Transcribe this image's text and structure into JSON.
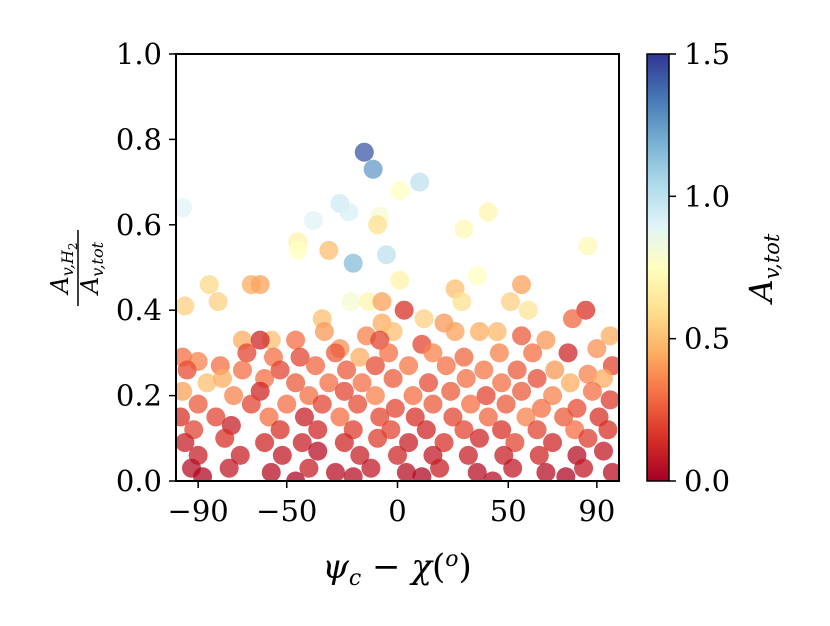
{
  "chart_data": {
    "type": "scatter",
    "title": "",
    "xlabel_parts": {
      "psi": "ψ",
      "psi_sub": "c",
      "minus": " − ",
      "chi": "χ",
      "open": "(",
      "sup": "o",
      "close": ")"
    },
    "ylabel_parts": {
      "num_main": "A",
      "num_sub": "v,H",
      "num_subsub": "2",
      "den_main": "A",
      "den_sub": "v,tot"
    },
    "colorbar_label_parts": {
      "main": "A",
      "sub": "v,tot"
    },
    "xlim": [
      -100,
      100
    ],
    "ylim": [
      0,
      1
    ],
    "xticks": [
      -90,
      -50,
      0,
      50,
      90
    ],
    "xtick_labels": [
      "−90",
      "−50",
      "0",
      "50",
      "90"
    ],
    "yticks": [
      0,
      0.2,
      0.4,
      0.6,
      0.8,
      1.0
    ],
    "ytick_labels": [
      "0.0",
      "0.2",
      "0.4",
      "0.6",
      "0.8",
      "1.0"
    ],
    "colorbar": {
      "min": 0,
      "max": 1.5,
      "ticks": [
        0,
        0.5,
        1.0,
        1.5
      ],
      "tick_labels": [
        "0.0",
        "0.5",
        "1.0",
        "1.5"
      ],
      "colormap": "RdYlBu"
    },
    "grid": false,
    "points": [
      {
        "x": -15,
        "y": 0.77,
        "c": 1.42
      },
      {
        "x": -11,
        "y": 0.73,
        "c": 1.25
      },
      {
        "x": 10,
        "y": 0.7,
        "c": 1.0
      },
      {
        "x": 1,
        "y": 0.68,
        "c": 0.75
      },
      {
        "x": -97,
        "y": 0.64,
        "c": 0.9
      },
      {
        "x": -26,
        "y": 0.65,
        "c": 0.95
      },
      {
        "x": -22,
        "y": 0.63,
        "c": 0.92
      },
      {
        "x": -8,
        "y": 0.62,
        "c": 0.8
      },
      {
        "x": -38,
        "y": 0.61,
        "c": 0.9
      },
      {
        "x": -9,
        "y": 0.6,
        "c": 0.6
      },
      {
        "x": 41,
        "y": 0.63,
        "c": 0.7
      },
      {
        "x": 30,
        "y": 0.59,
        "c": 0.72
      },
      {
        "x": -5,
        "y": 0.53,
        "c": 1.0
      },
      {
        "x": -20,
        "y": 0.51,
        "c": 1.15
      },
      {
        "x": -45,
        "y": 0.56,
        "c": 0.68
      },
      {
        "x": -45,
        "y": 0.54,
        "c": 0.75
      },
      {
        "x": -31,
        "y": 0.54,
        "c": 0.5
      },
      {
        "x": 86,
        "y": 0.55,
        "c": 0.72
      },
      {
        "x": 36,
        "y": 0.48,
        "c": 0.75
      },
      {
        "x": 1,
        "y": 0.47,
        "c": 0.68
      },
      {
        "x": -85,
        "y": 0.46,
        "c": 0.58
      },
      {
        "x": -66,
        "y": 0.46,
        "c": 0.45
      },
      {
        "x": -62,
        "y": 0.46,
        "c": 0.42
      },
      {
        "x": 26,
        "y": 0.45,
        "c": 0.5
      },
      {
        "x": 56,
        "y": 0.46,
        "c": 0.42
      },
      {
        "x": -96,
        "y": 0.41,
        "c": 0.55
      },
      {
        "x": -81,
        "y": 0.42,
        "c": 0.55
      },
      {
        "x": -21,
        "y": 0.42,
        "c": 0.8
      },
      {
        "x": -13,
        "y": 0.42,
        "c": 0.7
      },
      {
        "x": -7,
        "y": 0.42,
        "c": 0.42
      },
      {
        "x": 3,
        "y": 0.4,
        "c": 0.15
      },
      {
        "x": 29,
        "y": 0.42,
        "c": 0.6
      },
      {
        "x": 51,
        "y": 0.42,
        "c": 0.55
      },
      {
        "x": 59,
        "y": 0.4,
        "c": 0.62
      },
      {
        "x": 85,
        "y": 0.4,
        "c": 0.15
      },
      {
        "x": 79,
        "y": 0.38,
        "c": 0.28
      },
      {
        "x": -34,
        "y": 0.38,
        "c": 0.5
      },
      {
        "x": 12,
        "y": 0.38,
        "c": 0.55
      },
      {
        "x": -7,
        "y": 0.37,
        "c": 0.45
      },
      {
        "x": 21,
        "y": 0.37,
        "c": 0.4
      },
      {
        "x": 37,
        "y": 0.35,
        "c": 0.45
      },
      {
        "x": 45,
        "y": 0.35,
        "c": 0.48
      },
      {
        "x": -2,
        "y": 0.35,
        "c": 0.5
      },
      {
        "x": -33,
        "y": 0.35,
        "c": 0.4
      },
      {
        "x": -14,
        "y": 0.34,
        "c": 0.35
      },
      {
        "x": -70,
        "y": 0.33,
        "c": 0.45
      },
      {
        "x": -57,
        "y": 0.33,
        "c": 0.5
      },
      {
        "x": -46,
        "y": 0.33,
        "c": 0.3
      },
      {
        "x": 26,
        "y": 0.35,
        "c": 0.42
      },
      {
        "x": 67,
        "y": 0.33,
        "c": 0.4
      },
      {
        "x": 96,
        "y": 0.34,
        "c": 0.45
      },
      {
        "x": 56,
        "y": 0.34,
        "c": 0.25
      },
      {
        "x": -62,
        "y": 0.33,
        "c": 0.12
      },
      {
        "x": -68,
        "y": 0.3,
        "c": 0.2
      },
      {
        "x": 11,
        "y": 0.32,
        "c": 0.2
      },
      {
        "x": -8,
        "y": 0.33,
        "c": 0.2
      },
      {
        "x": -26,
        "y": 0.31,
        "c": 0.38
      },
      {
        "x": -97,
        "y": 0.29,
        "c": 0.3
      },
      {
        "x": -90,
        "y": 0.28,
        "c": 0.35
      },
      {
        "x": -80,
        "y": 0.27,
        "c": 0.3
      },
      {
        "x": -56,
        "y": 0.29,
        "c": 0.3
      },
      {
        "x": -44,
        "y": 0.29,
        "c": 0.2
      },
      {
        "x": -28,
        "y": 0.3,
        "c": 0.25
      },
      {
        "x": -17,
        "y": 0.29,
        "c": 0.45
      },
      {
        "x": -4,
        "y": 0.3,
        "c": 0.3
      },
      {
        "x": 16,
        "y": 0.3,
        "c": 0.35
      },
      {
        "x": 30,
        "y": 0.29,
        "c": 0.28
      },
      {
        "x": 46,
        "y": 0.3,
        "c": 0.35
      },
      {
        "x": 61,
        "y": 0.3,
        "c": 0.3
      },
      {
        "x": 77,
        "y": 0.3,
        "c": 0.12
      },
      {
        "x": 90,
        "y": 0.31,
        "c": 0.38
      },
      {
        "x": -95,
        "y": 0.26,
        "c": 0.22
      },
      {
        "x": -70,
        "y": 0.26,
        "c": 0.3
      },
      {
        "x": -53,
        "y": 0.26,
        "c": 0.2
      },
      {
        "x": -37,
        "y": 0.27,
        "c": 0.28
      },
      {
        "x": -23,
        "y": 0.26,
        "c": 0.25
      },
      {
        "x": -10,
        "y": 0.27,
        "c": 0.22
      },
      {
        "x": 5,
        "y": 0.27,
        "c": 0.32
      },
      {
        "x": 22,
        "y": 0.27,
        "c": 0.3
      },
      {
        "x": 39,
        "y": 0.26,
        "c": 0.32
      },
      {
        "x": 54,
        "y": 0.26,
        "c": 0.25
      },
      {
        "x": 71,
        "y": 0.26,
        "c": 0.4
      },
      {
        "x": 86,
        "y": 0.25,
        "c": 0.35
      },
      {
        "x": 97,
        "y": 0.27,
        "c": 0.2
      },
      {
        "x": -86,
        "y": 0.23,
        "c": 0.5
      },
      {
        "x": -79,
        "y": 0.24,
        "c": 0.45
      },
      {
        "x": -60,
        "y": 0.24,
        "c": 0.3
      },
      {
        "x": -46,
        "y": 0.23,
        "c": 0.25
      },
      {
        "x": -31,
        "y": 0.23,
        "c": 0.3
      },
      {
        "x": -16,
        "y": 0.23,
        "c": 0.3
      },
      {
        "x": -2,
        "y": 0.24,
        "c": 0.25
      },
      {
        "x": 14,
        "y": 0.23,
        "c": 0.22
      },
      {
        "x": 31,
        "y": 0.24,
        "c": 0.3
      },
      {
        "x": 47,
        "y": 0.23,
        "c": 0.3
      },
      {
        "x": 63,
        "y": 0.24,
        "c": 0.22
      },
      {
        "x": 78,
        "y": 0.23,
        "c": 0.45
      },
      {
        "x": 93,
        "y": 0.24,
        "c": 0.45
      },
      {
        "x": -97,
        "y": 0.21,
        "c": 0.42
      },
      {
        "x": -74,
        "y": 0.2,
        "c": 0.35
      },
      {
        "x": -62,
        "y": 0.21,
        "c": 0.12
      },
      {
        "x": -40,
        "y": 0.2,
        "c": 0.3
      },
      {
        "x": -24,
        "y": 0.21,
        "c": 0.2
      },
      {
        "x": -10,
        "y": 0.2,
        "c": 0.35
      },
      {
        "x": 7,
        "y": 0.2,
        "c": 0.3
      },
      {
        "x": 24,
        "y": 0.21,
        "c": 0.25
      },
      {
        "x": 40,
        "y": 0.2,
        "c": 0.2
      },
      {
        "x": 56,
        "y": 0.21,
        "c": 0.25
      },
      {
        "x": 70,
        "y": 0.2,
        "c": 0.35
      },
      {
        "x": 88,
        "y": 0.21,
        "c": 0.3
      },
      {
        "x": -90,
        "y": 0.18,
        "c": 0.25
      },
      {
        "x": -66,
        "y": 0.18,
        "c": 0.2
      },
      {
        "x": -50,
        "y": 0.18,
        "c": 0.3
      },
      {
        "x": -34,
        "y": 0.18,
        "c": 0.2
      },
      {
        "x": -18,
        "y": 0.18,
        "c": 0.22
      },
      {
        "x": -1,
        "y": 0.17,
        "c": 0.2
      },
      {
        "x": 16,
        "y": 0.18,
        "c": 0.25
      },
      {
        "x": 33,
        "y": 0.18,
        "c": 0.3
      },
      {
        "x": 49,
        "y": 0.18,
        "c": 0.25
      },
      {
        "x": 65,
        "y": 0.17,
        "c": 0.3
      },
      {
        "x": 81,
        "y": 0.17,
        "c": 0.22
      },
      {
        "x": 96,
        "y": 0.19,
        "c": 0.18
      },
      {
        "x": -98,
        "y": 0.15,
        "c": 0.15
      },
      {
        "x": -82,
        "y": 0.15,
        "c": 0.2
      },
      {
        "x": -58,
        "y": 0.15,
        "c": 0.3
      },
      {
        "x": -42,
        "y": 0.15,
        "c": 0.1
      },
      {
        "x": -26,
        "y": 0.15,
        "c": 0.3
      },
      {
        "x": -8,
        "y": 0.15,
        "c": 0.2
      },
      {
        "x": 8,
        "y": 0.15,
        "c": 0.15
      },
      {
        "x": 25,
        "y": 0.15,
        "c": 0.2
      },
      {
        "x": 41,
        "y": 0.15,
        "c": 0.28
      },
      {
        "x": 58,
        "y": 0.15,
        "c": 0.35
      },
      {
        "x": 75,
        "y": 0.15,
        "c": 0.25
      },
      {
        "x": 91,
        "y": 0.15,
        "c": 0.15
      },
      {
        "x": -92,
        "y": 0.12,
        "c": 0.2
      },
      {
        "x": -75,
        "y": 0.13,
        "c": 0.1
      },
      {
        "x": -53,
        "y": 0.12,
        "c": 0.15
      },
      {
        "x": -36,
        "y": 0.12,
        "c": 0.12
      },
      {
        "x": -20,
        "y": 0.12,
        "c": 0.18
      },
      {
        "x": -3,
        "y": 0.12,
        "c": 0.2
      },
      {
        "x": 13,
        "y": 0.12,
        "c": 0.12
      },
      {
        "x": 30,
        "y": 0.12,
        "c": 0.2
      },
      {
        "x": 47,
        "y": 0.12,
        "c": 0.15
      },
      {
        "x": 63,
        "y": 0.12,
        "c": 0.2
      },
      {
        "x": 80,
        "y": 0.12,
        "c": 0.3
      },
      {
        "x": 95,
        "y": 0.12,
        "c": 0.15
      },
      {
        "x": -96,
        "y": 0.09,
        "c": 0.1
      },
      {
        "x": -78,
        "y": 0.1,
        "c": 0.15
      },
      {
        "x": -60,
        "y": 0.09,
        "c": 0.12
      },
      {
        "x": -43,
        "y": 0.09,
        "c": 0.1
      },
      {
        "x": -24,
        "y": 0.09,
        "c": 0.12
      },
      {
        "x": -9,
        "y": 0.1,
        "c": 0.18
      },
      {
        "x": 5,
        "y": 0.09,
        "c": 0.1
      },
      {
        "x": 21,
        "y": 0.09,
        "c": 0.15
      },
      {
        "x": 37,
        "y": 0.1,
        "c": 0.12
      },
      {
        "x": 53,
        "y": 0.09,
        "c": 0.2
      },
      {
        "x": 70,
        "y": 0.09,
        "c": 0.12
      },
      {
        "x": 86,
        "y": 0.1,
        "c": 0.18
      },
      {
        "x": -90,
        "y": 0.06,
        "c": 0.1
      },
      {
        "x": -71,
        "y": 0.06,
        "c": 0.1
      },
      {
        "x": -52,
        "y": 0.06,
        "c": 0.08
      },
      {
        "x": -36,
        "y": 0.07,
        "c": 0.05
      },
      {
        "x": -17,
        "y": 0.06,
        "c": 0.1
      },
      {
        "x": 0,
        "y": 0.06,
        "c": 0.12
      },
      {
        "x": 16,
        "y": 0.06,
        "c": 0.08
      },
      {
        "x": 32,
        "y": 0.06,
        "c": 0.1
      },
      {
        "x": 48,
        "y": 0.06,
        "c": 0.1
      },
      {
        "x": 64,
        "y": 0.06,
        "c": 0.12
      },
      {
        "x": 81,
        "y": 0.06,
        "c": 0.05
      },
      {
        "x": 93,
        "y": 0.07,
        "c": 0.08
      },
      {
        "x": -93,
        "y": 0.03,
        "c": 0.05
      },
      {
        "x": -76,
        "y": 0.03,
        "c": 0.08
      },
      {
        "x": -57,
        "y": 0.02,
        "c": 0.05
      },
      {
        "x": -40,
        "y": 0.03,
        "c": 0.1
      },
      {
        "x": -28,
        "y": 0.02,
        "c": 0.05
      },
      {
        "x": -12,
        "y": 0.03,
        "c": 0.08
      },
      {
        "x": 4,
        "y": 0.02,
        "c": 0.05
      },
      {
        "x": 19,
        "y": 0.03,
        "c": 0.1
      },
      {
        "x": 36,
        "y": 0.02,
        "c": 0.05
      },
      {
        "x": 52,
        "y": 0.03,
        "c": 0.08
      },
      {
        "x": 67,
        "y": 0.02,
        "c": 0.05
      },
      {
        "x": 84,
        "y": 0.03,
        "c": 0.08
      },
      {
        "x": 97,
        "y": 0.02,
        "c": 0.05
      },
      {
        "x": -88,
        "y": 0.01,
        "c": 0.03
      },
      {
        "x": -46,
        "y": 0.0,
        "c": 0.03
      },
      {
        "x": -20,
        "y": 0.01,
        "c": 0.05
      },
      {
        "x": 11,
        "y": 0.01,
        "c": 0.03
      },
      {
        "x": 43,
        "y": 0.0,
        "c": 0.05
      },
      {
        "x": 76,
        "y": 0.01,
        "c": 0.03
      }
    ]
  }
}
